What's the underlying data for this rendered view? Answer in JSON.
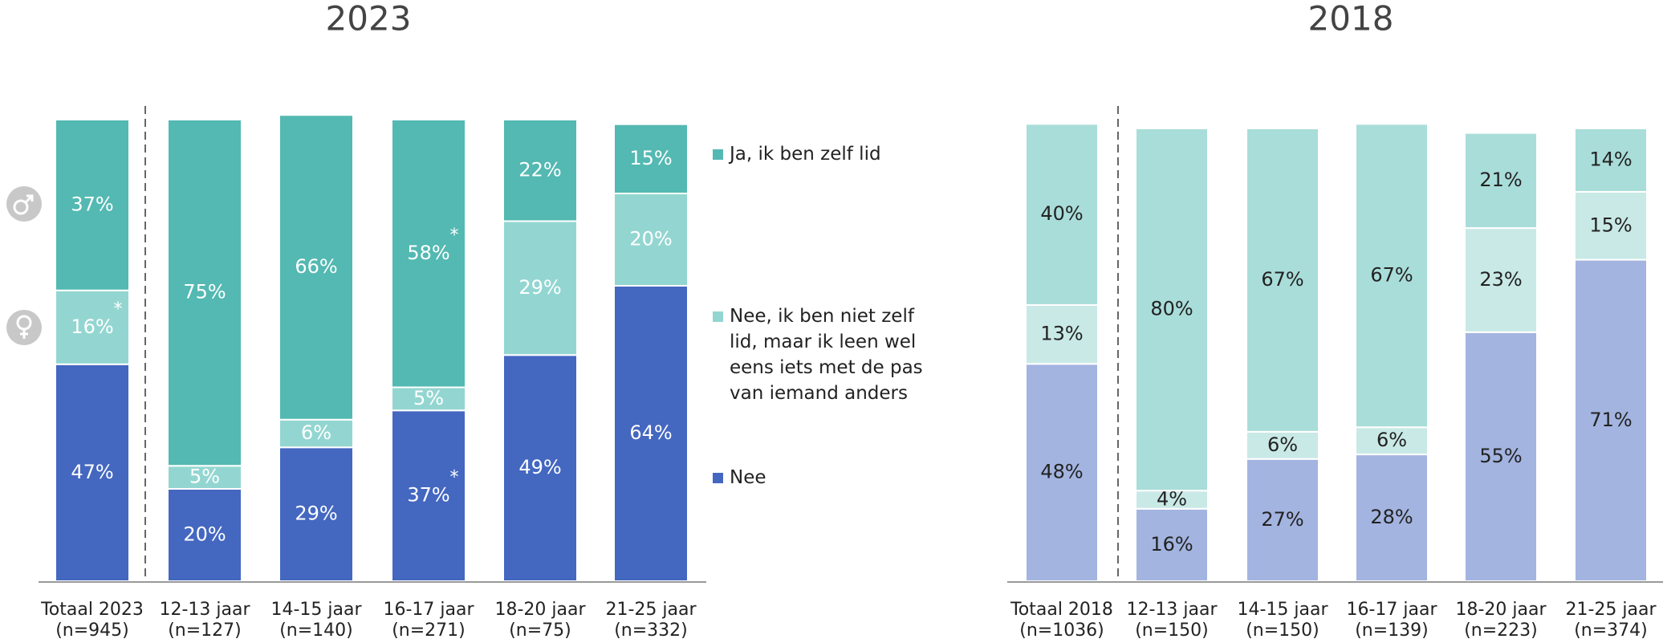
{
  "chart_data": [
    {
      "type": "bar",
      "stacked": true,
      "title": "2023",
      "categories": [
        "Totaal 2023",
        "12-13 jaar",
        "14-15 jaar",
        "16-17 jaar",
        "18-20 jaar",
        "21-25 jaar"
      ],
      "sample_sizes": [
        "(n=945)",
        "(n=127)",
        "(n=140)",
        "(n=271)",
        "(n=75)",
        "(n=332)"
      ],
      "label_color": "#ffffff",
      "series": [
        {
          "name": "Nee",
          "color": "#4467c0",
          "values": [
            47,
            20,
            29,
            37,
            49,
            64
          ],
          "value_labels": [
            "47%",
            "20%",
            "29%",
            "37%",
            "49%",
            "64%"
          ],
          "notes": [
            null,
            null,
            null,
            "*",
            null,
            null
          ]
        },
        {
          "name": "Nee, ik ben niet zelf lid, maar ik leen wel eens iets met de pas van iemand anders",
          "color": "#93d6d1",
          "values": [
            16,
            5,
            6,
            5,
            29,
            20
          ],
          "value_labels": [
            "16%",
            "5%",
            "6%",
            "5%",
            "29%",
            "20%"
          ],
          "notes": [
            "*",
            null,
            null,
            "*",
            null,
            null
          ]
        },
        {
          "name": "Ja, ik ben zelf lid",
          "color": "#53b9b2",
          "values": [
            37,
            75,
            66,
            58,
            22,
            15
          ],
          "value_labels": [
            "37%",
            "75%",
            "66%",
            "58%",
            "22%",
            "15%"
          ],
          "notes": [
            null,
            null,
            null,
            "*",
            null,
            null
          ]
        }
      ]
    },
    {
      "type": "bar",
      "stacked": true,
      "title": "2018",
      "categories": [
        "Totaal 2018",
        "12-13 jaar",
        "14-15 jaar",
        "16-17 jaar",
        "18-20 jaar",
        "21-25 jaar"
      ],
      "sample_sizes": [
        "(n=1036)",
        "(n=150)",
        "(n=150)",
        "(n=139)",
        "(n=223)",
        "(n=374)"
      ],
      "label_color": "#222222",
      "series": [
        {
          "color": "#a3b4e0",
          "values": [
            48,
            16,
            27,
            28,
            55,
            71
          ],
          "value_labels": [
            "48%",
            "16%",
            "27%",
            "28%",
            "55%",
            "71%"
          ]
        },
        {
          "color": "#c9e9e6",
          "values": [
            13,
            4,
            6,
            6,
            23,
            15
          ],
          "value_labels": [
            "13%",
            "4%",
            "6%",
            "6%",
            "23%",
            "15%"
          ]
        },
        {
          "color": "#a9ddd9",
          "values": [
            40,
            80,
            67,
            67,
            21,
            14
          ],
          "value_labels": [
            "40%",
            "80%",
            "67%",
            "67%",
            "21%",
            "14%"
          ]
        }
      ]
    }
  ]
}
